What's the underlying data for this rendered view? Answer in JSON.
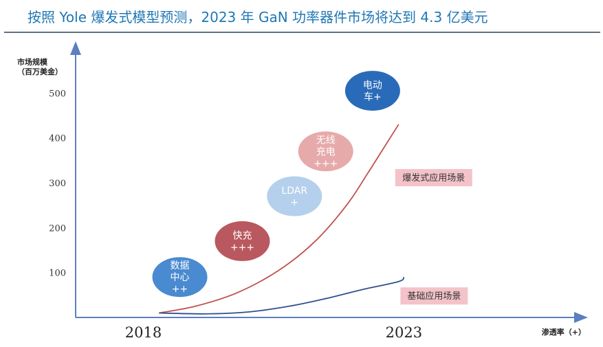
{
  "title": "按照 Yole 爆发式模型预测，2023 年 GaN 功率器件市场将达到 4.3 亿美元",
  "chart_data": {
    "type": "line",
    "ylabel_lines": [
      "市场规模",
      "（百万美金）"
    ],
    "xlabel": "渗透率（+）",
    "yticks": [
      100,
      200,
      300,
      400,
      500
    ],
    "ylim": [
      0,
      600
    ],
    "xlim": [
      2016.7,
      2026.4
    ],
    "x_tick_labels": [
      "2018",
      "2023"
    ],
    "series": [
      {
        "name": "爆发式应用场景",
        "color": "#c0504d",
        "points": [
          [
            2018.3,
            10
          ],
          [
            2019.0,
            25
          ],
          [
            2019.8,
            55
          ],
          [
            2020.6,
            105
          ],
          [
            2021.3,
            170
          ],
          [
            2021.9,
            250
          ],
          [
            2022.3,
            320
          ],
          [
            2022.6,
            375
          ],
          [
            2022.9,
            430
          ]
        ]
      },
      {
        "name": "基础应用场景",
        "color": "#2f4f8f",
        "points": [
          [
            2018.3,
            10
          ],
          [
            2019.2,
            8
          ],
          [
            2020.0,
            12
          ],
          [
            2020.8,
            25
          ],
          [
            2021.5,
            42
          ],
          [
            2022.2,
            62
          ],
          [
            2022.9,
            80
          ],
          [
            2023.0,
            90
          ]
        ]
      }
    ],
    "bubbles": [
      {
        "lines": [
          "数据",
          "中心",
          "++"
        ],
        "x": 2018.7,
        "y": 90,
        "color": "#4a8ad0"
      },
      {
        "lines": [
          "快充",
          "+++"
        ],
        "x": 2019.9,
        "y": 170,
        "color": "#b9585e"
      },
      {
        "lines": [
          "LDAR",
          "+"
        ],
        "x": 2020.9,
        "y": 270,
        "color": "#b4d0ec"
      },
      {
        "lines": [
          "无线",
          "充电",
          "+++"
        ],
        "x": 2021.5,
        "y": 370,
        "color": "#e6aaaa"
      },
      {
        "lines": [
          "电动",
          "车+"
        ],
        "x": 2022.4,
        "y": 505,
        "color": "#2a6bb9"
      }
    ],
    "labels": [
      {
        "text": "爆发式应用场景",
        "series": 0,
        "fill": "#f3c3c9"
      },
      {
        "text": "基础应用场景",
        "series": 1,
        "fill": "#f3c3c9"
      }
    ]
  }
}
